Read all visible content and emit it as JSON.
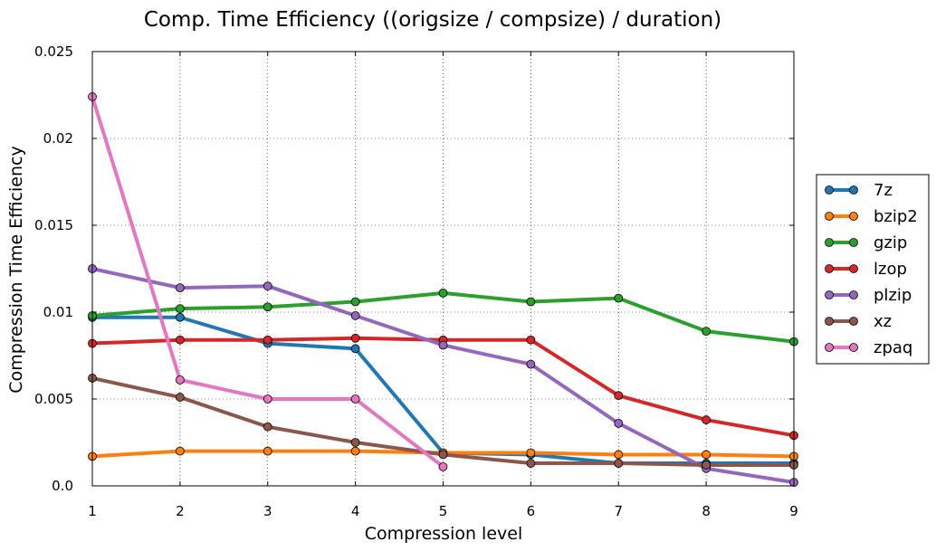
{
  "chart_data": {
    "type": "line",
    "title": "Comp. Time Efficiency ((origsize / compsize) / duration)",
    "xlabel": "Compression level",
    "ylabel": "Compression Time Efficiency",
    "x": [
      1,
      2,
      3,
      4,
      5,
      6,
      7,
      8,
      9
    ],
    "xticks": [
      "1",
      "2",
      "3",
      "4",
      "5",
      "6",
      "7",
      "8",
      "9"
    ],
    "yticks": [
      {
        "value": 0.0,
        "label": "0.0"
      },
      {
        "value": 0.005,
        "label": "0.005"
      },
      {
        "value": 0.01,
        "label": "0.01"
      },
      {
        "value": 0.015,
        "label": "0.015"
      },
      {
        "value": 0.02,
        "label": "0.02"
      },
      {
        "value": 0.025,
        "label": "0.025"
      }
    ],
    "xlim": [
      1,
      9
    ],
    "ylim": [
      0,
      0.025
    ],
    "grid": true,
    "legend_position": "right",
    "series": [
      {
        "name": "7z",
        "color": "#1f77b4",
        "values": [
          0.0097,
          0.0097,
          0.0082,
          0.0079,
          0.0019,
          0.0018,
          0.0013,
          0.0013,
          0.0013
        ]
      },
      {
        "name": "bzip2",
        "color": "#ff7f0e",
        "values": [
          0.0017,
          0.002,
          0.002,
          0.002,
          0.0019,
          0.0019,
          0.0018,
          0.0018,
          0.0017
        ]
      },
      {
        "name": "gzip",
        "color": "#2ca02c",
        "values": [
          0.0098,
          0.0102,
          0.0103,
          0.0106,
          0.0111,
          0.0106,
          0.0108,
          0.0089,
          0.0083
        ]
      },
      {
        "name": "lzop",
        "color": "#d62728",
        "values": [
          0.0082,
          0.0084,
          0.0084,
          0.0085,
          0.0084,
          0.0084,
          0.0052,
          0.0038,
          0.0029
        ]
      },
      {
        "name": "plzip",
        "color": "#9467bd",
        "values": [
          0.0125,
          0.0114,
          0.0115,
          0.0098,
          0.0081,
          0.007,
          0.0036,
          0.001,
          0.0002
        ]
      },
      {
        "name": "xz",
        "color": "#8c564b",
        "values": [
          0.0062,
          0.0051,
          0.0034,
          0.0025,
          0.0018,
          0.0013,
          0.0013,
          0.0012,
          0.0012
        ]
      },
      {
        "name": "zpaq",
        "color": "#e377c2",
        "values": [
          0.0224,
          0.0061,
          0.005,
          0.005,
          0.0011,
          null,
          null,
          null,
          null
        ]
      }
    ]
  }
}
